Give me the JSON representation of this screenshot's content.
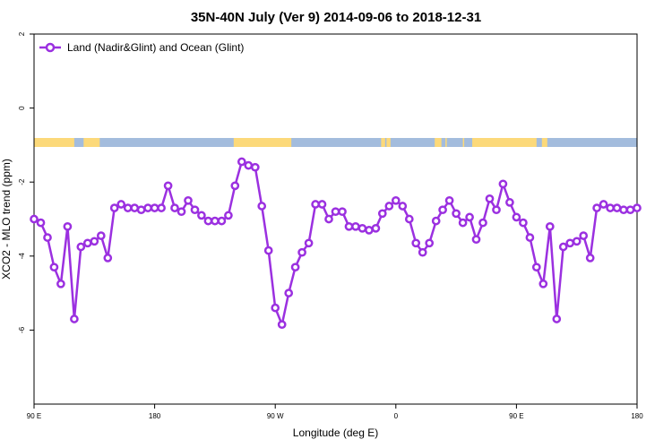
{
  "chart_data": {
    "type": "line",
    "title": "35N-40N July (Ver 9)   2014-09-06 to 2018-12-31",
    "xlabel": "Longitude (deg E)",
    "ylabel": "XCO2 - MLO trend (ppm)",
    "xlim": [
      90,
      540
    ],
    "ylim": [
      -8,
      2
    ],
    "xticks": [
      {
        "value": 90,
        "label": "90 E"
      },
      {
        "value": 180,
        "label": "180"
      },
      {
        "value": 270,
        "label": "90 W"
      },
      {
        "value": 360,
        "label": "0"
      },
      {
        "value": 450,
        "label": "90 E"
      },
      {
        "value": 540,
        "label": "180"
      }
    ],
    "yticks": [
      {
        "value": 2,
        "label": "2"
      },
      {
        "value": 0,
        "label": "0"
      },
      {
        "value": -2,
        "label": "-2"
      },
      {
        "value": -4,
        "label": "-4"
      },
      {
        "value": -6,
        "label": "-6"
      }
    ],
    "legend_position": "top-left",
    "series": [
      {
        "name": "Land (Nadir&Glint) and Ocean (Glint)",
        "color": "#9b30e0",
        "x": [
          90,
          95,
          100,
          105,
          110,
          115,
          120,
          125,
          130,
          135,
          140,
          145,
          150,
          155,
          160,
          165,
          170,
          175,
          180,
          185,
          190,
          195,
          200,
          205,
          210,
          215,
          220,
          225,
          230,
          235,
          240,
          245,
          250,
          255,
          260,
          265,
          270,
          275,
          280,
          285,
          290,
          295,
          300,
          305,
          310,
          315,
          320,
          325,
          330,
          335,
          340,
          345,
          350,
          355,
          360,
          365,
          370,
          375,
          380,
          385,
          390,
          395,
          400,
          405,
          410,
          415,
          420,
          425,
          430,
          435,
          440,
          445,
          450,
          455,
          460,
          465,
          470,
          475,
          480,
          485,
          490,
          495,
          500,
          505,
          510,
          515,
          520,
          525,
          530,
          535,
          540
        ],
        "y": [
          -3.0,
          -3.1,
          -3.5,
          -4.3,
          -4.75,
          -3.2,
          -5.7,
          -3.75,
          -3.65,
          -3.6,
          -3.45,
          -4.05,
          -2.7,
          -2.6,
          -2.7,
          -2.7,
          -2.75,
          -2.7,
          -2.7,
          -2.7,
          -2.1,
          -2.7,
          -2.8,
          -2.5,
          -2.75,
          -2.9,
          -3.05,
          -3.05,
          -3.05,
          -2.9,
          -2.1,
          -1.45,
          -1.55,
          -1.6,
          -2.65,
          -3.85,
          -5.4,
          -5.85,
          -5.0,
          -4.3,
          -3.9,
          -3.65,
          -2.6,
          -2.6,
          -3.0,
          -2.8,
          -2.8,
          -3.2,
          -3.2,
          -3.25,
          -3.3,
          -3.25,
          -2.85,
          -2.65,
          -2.5,
          -2.65,
          -3.0,
          -3.65,
          -3.9,
          -3.65,
          -3.05,
          -2.75,
          -2.5,
          -2.85,
          -3.1,
          -2.95,
          -3.55,
          -3.1,
          -2.45,
          -2.75,
          -2.05,
          -2.55,
          -2.95,
          -3.1,
          -3.5,
          -4.3,
          -4.75,
          -3.2,
          -5.7,
          -3.75,
          -3.65,
          -3.6,
          -3.45,
          -4.05,
          -2.7,
          -2.6,
          -2.7,
          -2.7,
          -2.75,
          -2.75,
          -2.7
        ]
      }
    ],
    "land_ocean_strip": {
      "ocean_color": "#a3bcdd",
      "land_color": "#fcd97a",
      "land_ranges": [
        [
          90,
          120
        ],
        [
          127,
          139
        ],
        [
          239,
          282
        ],
        [
          349,
          352
        ],
        [
          353,
          356
        ],
        [
          389,
          394
        ],
        [
          397,
          398
        ],
        [
          410,
          411
        ],
        [
          417,
          465
        ],
        [
          469,
          473
        ]
      ]
    }
  }
}
